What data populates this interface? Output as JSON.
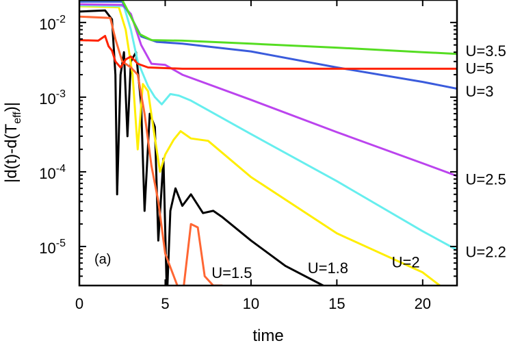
{
  "chart_data": {
    "type": "line",
    "title": "",
    "xlabel": "time",
    "ylabel": "|d(t)-d(T",
    "ylabel_sub": "eff",
    "ylabel_end": ")|",
    "panel_label": "(a)",
    "xlim": [
      0,
      22
    ],
    "ylim": [
      3e-06,
      0.02
    ],
    "yscale": "log",
    "x_ticks": [
      0,
      5,
      10,
      15,
      20
    ],
    "y_ticks": [
      {
        "value": 0.01,
        "base": "10",
        "exp": "-2"
      },
      {
        "value": 0.001,
        "base": "10",
        "exp": "-3"
      },
      {
        "value": 0.0001,
        "base": "10",
        "exp": "-4"
      },
      {
        "value": 1e-05,
        "base": "10",
        "exp": "-5"
      }
    ],
    "series": [
      {
        "name": "U=1.5",
        "color": "#000000",
        "points": [
          [
            0,
            0.014
          ],
          [
            1.5,
            0.0145
          ],
          [
            1.9,
            0.011
          ],
          [
            2.1,
            0.002
          ],
          [
            2.2,
            5e-05
          ],
          [
            2.4,
            0.002
          ],
          [
            2.6,
            0.004
          ],
          [
            2.8,
            0.0003
          ],
          [
            3.0,
            0.003
          ],
          [
            3.3,
            0.004
          ],
          [
            3.6,
            0.0008
          ],
          [
            3.8,
            3e-05
          ],
          [
            4.1,
            0.0006
          ],
          [
            4.4,
            0.0004
          ],
          [
            4.6,
            1.2e-05
          ],
          [
            4.9,
            0.00015
          ],
          [
            5.1,
            2e-06
          ],
          [
            5.3,
            3e-05
          ],
          [
            5.6,
            6e-05
          ],
          [
            6.0,
            3.5e-05
          ],
          [
            6.5,
            5e-05
          ],
          [
            7.2,
            2.8e-05
          ],
          [
            7.8,
            3e-05
          ],
          [
            8.3,
            2.5e-05
          ],
          [
            10,
            1.2e-05
          ],
          [
            12,
            5.5e-06
          ],
          [
            14.2,
            3e-06
          ]
        ]
      },
      {
        "name": "U=1.8",
        "color": "#ffee00",
        "points": [
          [
            0,
            0.0165
          ],
          [
            2.3,
            0.016
          ],
          [
            2.7,
            0.008
          ],
          [
            3.1,
            0.002
          ],
          [
            3.4,
            0.0002
          ],
          [
            3.7,
            0.0015
          ],
          [
            4.0,
            0.0012
          ],
          [
            4.3,
            0.0004
          ],
          [
            4.7,
            0.0001
          ],
          [
            5.0,
            0.00017
          ],
          [
            5.5,
            0.00027
          ],
          [
            5.9,
            0.00035
          ],
          [
            6.5,
            0.00028
          ],
          [
            7.5,
            0.00026
          ],
          [
            10,
            8.5e-05
          ],
          [
            15,
            1.5e-05
          ],
          [
            20,
            4.5e-06
          ],
          [
            21,
            3e-06
          ]
        ]
      },
      {
        "name": "U=2",
        "color": "#66eeee",
        "points": [
          [
            0,
            0.017
          ],
          [
            2.6,
            0.0165
          ],
          [
            3.0,
            0.008
          ],
          [
            3.4,
            0.003
          ],
          [
            4.0,
            0.0014
          ],
          [
            4.4,
            0.001
          ],
          [
            4.8,
            0.0008
          ],
          [
            5.3,
            0.0011
          ],
          [
            5.8,
            0.00105
          ],
          [
            6.5,
            0.0009
          ],
          [
            10,
            0.00032
          ],
          [
            15,
            7.5e-05
          ],
          [
            20,
            1.6e-05
          ],
          [
            22,
            9e-06
          ]
        ]
      },
      {
        "name": "U=2.2",
        "color": "#bb44ee",
        "points": [
          [
            0,
            0.0175
          ],
          [
            2.5,
            0.0172
          ],
          [
            3.0,
            0.013
          ],
          [
            3.6,
            0.005
          ],
          [
            4.2,
            0.0028
          ],
          [
            5.0,
            0.0027
          ],
          [
            6.0,
            0.002
          ],
          [
            10,
            0.00092
          ],
          [
            15,
            0.00034
          ],
          [
            20,
            0.00013
          ],
          [
            22,
            8.8e-05
          ]
        ]
      },
      {
        "name": "U=2.5",
        "color": "#3a5bdc",
        "points": [
          [
            0,
            0.019
          ],
          [
            2.5,
            0.019
          ],
          [
            3.0,
            0.012
          ],
          [
            3.6,
            0.0065
          ],
          [
            4.5,
            0.0055
          ],
          [
            6,
            0.0052
          ],
          [
            10,
            0.0041
          ],
          [
            15,
            0.0025
          ],
          [
            20,
            0.0016
          ],
          [
            22,
            0.0013
          ]
        ]
      },
      {
        "name": "U=3",
        "color": "#55dd22",
        "points": [
          [
            0,
            0.02
          ],
          [
            2.5,
            0.02
          ],
          [
            3.0,
            0.012
          ],
          [
            3.5,
            0.007
          ],
          [
            4.2,
            0.0058
          ],
          [
            6,
            0.0057
          ],
          [
            10,
            0.0052
          ],
          [
            15,
            0.0046
          ],
          [
            20,
            0.004
          ],
          [
            22,
            0.0038
          ]
        ]
      },
      {
        "name": "U=3.5",
        "color": "#ff6633",
        "points": [
          [
            0,
            0.012
          ],
          [
            1.8,
            0.0115
          ],
          [
            2.1,
            0.006
          ],
          [
            2.5,
            0.003
          ],
          [
            3.0,
            0.0025
          ],
          [
            3.4,
            0.002
          ],
          [
            3.8,
            0.0006
          ],
          [
            4.2,
            0.00012
          ],
          [
            4.6,
            4e-05
          ],
          [
            5.0,
            8e-06
          ],
          [
            5.5,
            4e-06
          ],
          [
            6.0,
            2e-06
          ],
          [
            6.5,
            2e-05
          ],
          [
            6.9,
            1.8e-05
          ],
          [
            7.3,
            4e-06
          ],
          [
            7.8,
            3e-06
          ],
          [
            8.3,
            3e-06
          ]
        ]
      },
      {
        "name": "U=5",
        "color": "#ff2200",
        "points": [
          [
            0,
            0.0058
          ],
          [
            1.1,
            0.0057
          ],
          [
            1.5,
            0.0066
          ],
          [
            1.7,
            0.0048
          ],
          [
            1.9,
            0.0042
          ],
          [
            2.1,
            0.003
          ],
          [
            2.4,
            0.0025
          ],
          [
            2.7,
            0.0032
          ],
          [
            3.0,
            0.0035
          ],
          [
            3.4,
            0.0028
          ],
          [
            4.0,
            0.0025
          ],
          [
            6,
            0.0024
          ],
          [
            10,
            0.0024
          ],
          [
            15,
            0.0024
          ],
          [
            22,
            0.0024
          ]
        ]
      }
    ],
    "curve_labels": [
      {
        "text": "U=3.5",
        "x": 22.5,
        "y": 0.0042,
        "anchor": "start"
      },
      {
        "text": "U=5",
        "x": 22.5,
        "y": 0.00245,
        "anchor": "start"
      },
      {
        "text": "U=3",
        "x": 22.5,
        "y": 0.0012,
        "anchor": "start"
      },
      {
        "text": "U=2.5",
        "x": 22.5,
        "y": 8e-05,
        "anchor": "start"
      },
      {
        "text": "U=2.2",
        "x": 22.5,
        "y": 8.5e-06,
        "anchor": "start"
      },
      {
        "text": "U=1.5",
        "x": 7.7,
        "y": 4.5e-06,
        "anchor": "start"
      },
      {
        "text": "U=1.8",
        "x": 13.3,
        "y": 5.2e-06,
        "anchor": "start"
      },
      {
        "text": "U=2",
        "x": 18.2,
        "y": 6.2e-06,
        "anchor": "start"
      }
    ],
    "grid": false,
    "legend": "none"
  }
}
